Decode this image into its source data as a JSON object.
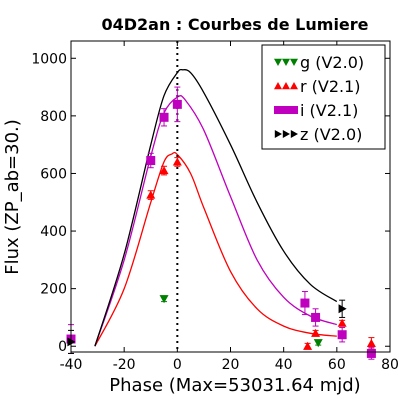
{
  "chart_data": {
    "type": "line",
    "title": "04D2an : Courbes de Lumiere",
    "xlabel": "Phase (Max=53031.64 mjd)",
    "ylabel": "Flux (ZP_ab=30.)",
    "xlim": [
      -40,
      80
    ],
    "ylim": [
      -20,
      1060
    ],
    "xticks": [
      -40,
      -20,
      0,
      20,
      40,
      60,
      80
    ],
    "yticks": [
      0,
      200,
      400,
      600,
      800,
      1000
    ],
    "xtick_labels": [
      "-40",
      "-20",
      "0",
      "20",
      "40",
      "60",
      "80"
    ],
    "ytick_labels": [
      "0",
      "200",
      "400",
      "600",
      "800",
      "1000"
    ],
    "grid": false,
    "legend_position": "top-right",
    "vline_x": 0,
    "series": [
      {
        "name": "g (V2.0)",
        "color": "#008000",
        "marker": "triangle-down",
        "points": [
          [
            -5,
            165
          ],
          [
            53,
            12
          ]
        ],
        "errors": [
          10,
          8
        ],
        "curve": []
      },
      {
        "name": "r (V2.1)",
        "color": "#ff0000",
        "marker": "triangle-up",
        "points": [
          [
            -10,
            525
          ],
          [
            -5,
            610
          ],
          [
            0,
            640
          ],
          [
            49,
            0
          ],
          [
            52,
            45
          ],
          [
            62,
            80
          ],
          [
            73,
            10
          ]
        ],
        "errors": [
          15,
          15,
          15,
          10,
          10,
          10,
          20
        ],
        "curve": [
          [
            -31,
            0
          ],
          [
            -20,
            200
          ],
          [
            -10,
            500
          ],
          [
            -5,
            640
          ],
          [
            -2,
            668
          ],
          [
            0,
            666
          ],
          [
            5,
            600
          ],
          [
            10,
            480
          ],
          [
            20,
            260
          ],
          [
            30,
            130
          ],
          [
            40,
            70
          ],
          [
            50,
            45
          ],
          [
            60,
            35
          ]
        ]
      },
      {
        "name": "i (V2.1)",
        "color": "#bf00bf",
        "marker": "square",
        "points": [
          [
            -40,
            25
          ],
          [
            -10,
            645
          ],
          [
            -5,
            795
          ],
          [
            0,
            840
          ],
          [
            48,
            150
          ],
          [
            52,
            100
          ],
          [
            62,
            40
          ],
          [
            73,
            -25
          ]
        ],
        "errors": [
          50,
          25,
          30,
          60,
          40,
          30,
          25,
          20
        ],
        "curve": [
          [
            -31,
            0
          ],
          [
            -20,
            300
          ],
          [
            -10,
            660
          ],
          [
            -5,
            810
          ],
          [
            0,
            865
          ],
          [
            3,
            855
          ],
          [
            10,
            750
          ],
          [
            20,
            520
          ],
          [
            30,
            300
          ],
          [
            40,
            170
          ],
          [
            50,
            105
          ],
          [
            60,
            75
          ]
        ]
      },
      {
        "name": "z (V2.0)",
        "color": "#000000",
        "marker": "triangle-right",
        "points": [
          [
            -40,
            15
          ],
          [
            62,
            130
          ]
        ],
        "errors": [
          40,
          30
        ],
        "curve": [
          [
            -31,
            0
          ],
          [
            -20,
            320
          ],
          [
            -10,
            700
          ],
          [
            -5,
            870
          ],
          [
            0,
            950
          ],
          [
            2,
            960
          ],
          [
            5,
            950
          ],
          [
            10,
            880
          ],
          [
            20,
            700
          ],
          [
            30,
            500
          ],
          [
            40,
            330
          ],
          [
            50,
            215
          ],
          [
            60,
            155
          ]
        ]
      }
    ]
  }
}
